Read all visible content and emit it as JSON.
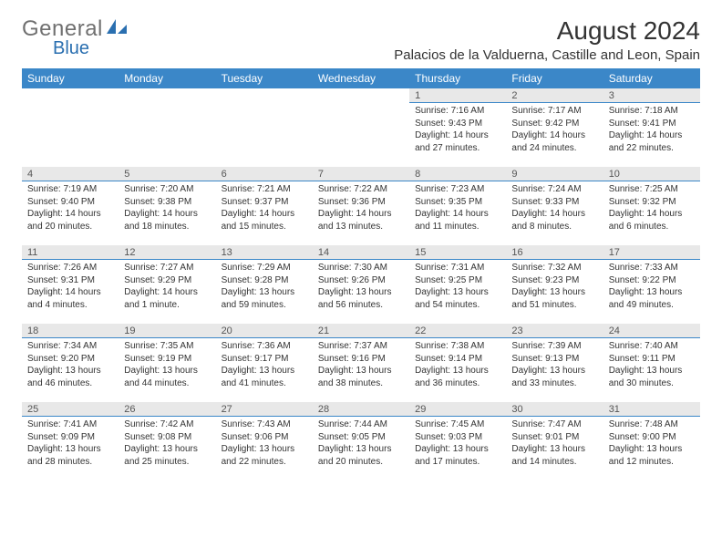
{
  "logo": {
    "text_general": "General",
    "text_blue": "Blue"
  },
  "title": "August 2024",
  "location": "Palacios de la Valduerna, Castille and Leon, Spain",
  "colors": {
    "header_bg": "#3b87c8",
    "header_text": "#ffffff",
    "daynum_bg": "#e8e8e8",
    "daynum_border": "#3b87c8",
    "text": "#333333",
    "logo_gray": "#707070",
    "logo_blue": "#2a6fb0"
  },
  "day_headers": [
    "Sunday",
    "Monday",
    "Tuesday",
    "Wednesday",
    "Thursday",
    "Friday",
    "Saturday"
  ],
  "weeks": [
    [
      null,
      null,
      null,
      null,
      {
        "n": "1",
        "sunrise": "7:16 AM",
        "sunset": "9:43 PM",
        "daylight": "14 hours and 27 minutes."
      },
      {
        "n": "2",
        "sunrise": "7:17 AM",
        "sunset": "9:42 PM",
        "daylight": "14 hours and 24 minutes."
      },
      {
        "n": "3",
        "sunrise": "7:18 AM",
        "sunset": "9:41 PM",
        "daylight": "14 hours and 22 minutes."
      }
    ],
    [
      {
        "n": "4",
        "sunrise": "7:19 AM",
        "sunset": "9:40 PM",
        "daylight": "14 hours and 20 minutes."
      },
      {
        "n": "5",
        "sunrise": "7:20 AM",
        "sunset": "9:38 PM",
        "daylight": "14 hours and 18 minutes."
      },
      {
        "n": "6",
        "sunrise": "7:21 AM",
        "sunset": "9:37 PM",
        "daylight": "14 hours and 15 minutes."
      },
      {
        "n": "7",
        "sunrise": "7:22 AM",
        "sunset": "9:36 PM",
        "daylight": "14 hours and 13 minutes."
      },
      {
        "n": "8",
        "sunrise": "7:23 AM",
        "sunset": "9:35 PM",
        "daylight": "14 hours and 11 minutes."
      },
      {
        "n": "9",
        "sunrise": "7:24 AM",
        "sunset": "9:33 PM",
        "daylight": "14 hours and 8 minutes."
      },
      {
        "n": "10",
        "sunrise": "7:25 AM",
        "sunset": "9:32 PM",
        "daylight": "14 hours and 6 minutes."
      }
    ],
    [
      {
        "n": "11",
        "sunrise": "7:26 AM",
        "sunset": "9:31 PM",
        "daylight": "14 hours and 4 minutes."
      },
      {
        "n": "12",
        "sunrise": "7:27 AM",
        "sunset": "9:29 PM",
        "daylight": "14 hours and 1 minute."
      },
      {
        "n": "13",
        "sunrise": "7:29 AM",
        "sunset": "9:28 PM",
        "daylight": "13 hours and 59 minutes."
      },
      {
        "n": "14",
        "sunrise": "7:30 AM",
        "sunset": "9:26 PM",
        "daylight": "13 hours and 56 minutes."
      },
      {
        "n": "15",
        "sunrise": "7:31 AM",
        "sunset": "9:25 PM",
        "daylight": "13 hours and 54 minutes."
      },
      {
        "n": "16",
        "sunrise": "7:32 AM",
        "sunset": "9:23 PM",
        "daylight": "13 hours and 51 minutes."
      },
      {
        "n": "17",
        "sunrise": "7:33 AM",
        "sunset": "9:22 PM",
        "daylight": "13 hours and 49 minutes."
      }
    ],
    [
      {
        "n": "18",
        "sunrise": "7:34 AM",
        "sunset": "9:20 PM",
        "daylight": "13 hours and 46 minutes."
      },
      {
        "n": "19",
        "sunrise": "7:35 AM",
        "sunset": "9:19 PM",
        "daylight": "13 hours and 44 minutes."
      },
      {
        "n": "20",
        "sunrise": "7:36 AM",
        "sunset": "9:17 PM",
        "daylight": "13 hours and 41 minutes."
      },
      {
        "n": "21",
        "sunrise": "7:37 AM",
        "sunset": "9:16 PM",
        "daylight": "13 hours and 38 minutes."
      },
      {
        "n": "22",
        "sunrise": "7:38 AM",
        "sunset": "9:14 PM",
        "daylight": "13 hours and 36 minutes."
      },
      {
        "n": "23",
        "sunrise": "7:39 AM",
        "sunset": "9:13 PM",
        "daylight": "13 hours and 33 minutes."
      },
      {
        "n": "24",
        "sunrise": "7:40 AM",
        "sunset": "9:11 PM",
        "daylight": "13 hours and 30 minutes."
      }
    ],
    [
      {
        "n": "25",
        "sunrise": "7:41 AM",
        "sunset": "9:09 PM",
        "daylight": "13 hours and 28 minutes."
      },
      {
        "n": "26",
        "sunrise": "7:42 AM",
        "sunset": "9:08 PM",
        "daylight": "13 hours and 25 minutes."
      },
      {
        "n": "27",
        "sunrise": "7:43 AM",
        "sunset": "9:06 PM",
        "daylight": "13 hours and 22 minutes."
      },
      {
        "n": "28",
        "sunrise": "7:44 AM",
        "sunset": "9:05 PM",
        "daylight": "13 hours and 20 minutes."
      },
      {
        "n": "29",
        "sunrise": "7:45 AM",
        "sunset": "9:03 PM",
        "daylight": "13 hours and 17 minutes."
      },
      {
        "n": "30",
        "sunrise": "7:47 AM",
        "sunset": "9:01 PM",
        "daylight": "13 hours and 14 minutes."
      },
      {
        "n": "31",
        "sunrise": "7:48 AM",
        "sunset": "9:00 PM",
        "daylight": "13 hours and 12 minutes."
      }
    ]
  ],
  "labels": {
    "sunrise": "Sunrise:",
    "sunset": "Sunset:",
    "daylight": "Daylight:"
  }
}
